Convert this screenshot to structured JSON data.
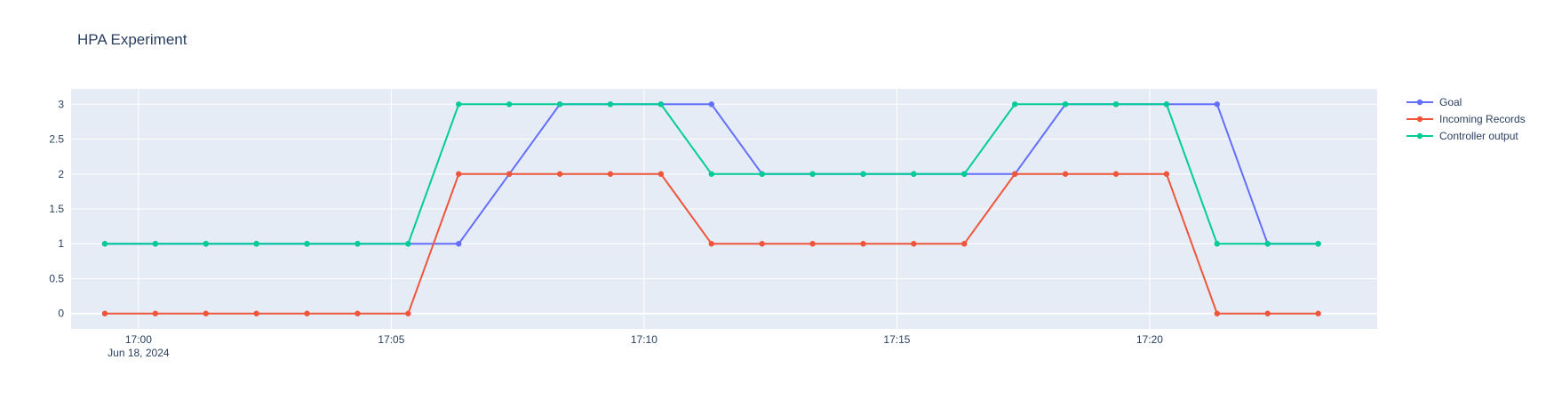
{
  "chart_data": {
    "type": "line",
    "title": "HPA Experiment",
    "xlabel": "",
    "ylabel": "",
    "x_axis": {
      "type": "time",
      "range": [
        "2024-06-18 16:58:40",
        "2024-06-18 17:24:30"
      ],
      "ticks": [
        {
          "t": "2024-06-18 17:00:00",
          "label": "17:00",
          "sublabel": "Jun 18, 2024"
        },
        {
          "t": "2024-06-18 17:05:00",
          "label": "17:05"
        },
        {
          "t": "2024-06-18 17:10:00",
          "label": "17:10"
        },
        {
          "t": "2024-06-18 17:15:00",
          "label": "17:15"
        },
        {
          "t": "2024-06-18 17:20:00",
          "label": "17:20"
        }
      ]
    },
    "y_axis": {
      "range": [
        -0.22,
        3.22
      ],
      "ticks": [
        0,
        0.5,
        1,
        1.5,
        2,
        2.5,
        3
      ],
      "tick_labels": [
        "0",
        "0.5",
        "1",
        "1.5",
        "2",
        "2.5",
        "3"
      ]
    },
    "x": [
      "2024-06-18 16:59:20",
      "2024-06-18 17:00:20",
      "2024-06-18 17:01:20",
      "2024-06-18 17:02:20",
      "2024-06-18 17:03:20",
      "2024-06-18 17:04:20",
      "2024-06-18 17:05:20",
      "2024-06-18 17:06:20",
      "2024-06-18 17:07:20",
      "2024-06-18 17:08:20",
      "2024-06-18 17:09:20",
      "2024-06-18 17:10:20",
      "2024-06-18 17:11:20",
      "2024-06-18 17:12:20",
      "2024-06-18 17:13:20",
      "2024-06-18 17:14:20",
      "2024-06-18 17:15:20",
      "2024-06-18 17:16:20",
      "2024-06-18 17:17:20",
      "2024-06-18 17:18:20",
      "2024-06-18 17:19:20",
      "2024-06-18 17:20:20",
      "2024-06-18 17:21:20",
      "2024-06-18 17:22:20",
      "2024-06-18 17:23:20"
    ],
    "series": [
      {
        "name": "Goal",
        "color": "#636efa",
        "values": [
          1,
          1,
          1,
          1,
          1,
          1,
          1,
          1,
          2,
          3,
          3,
          3,
          3,
          2,
          2,
          2,
          2,
          2,
          2,
          3,
          3,
          3,
          3,
          1,
          1
        ]
      },
      {
        "name": "Incoming Records",
        "color": "#ef553b",
        "values": [
          0,
          0,
          0,
          0,
          0,
          0,
          0,
          2,
          2,
          2,
          2,
          2,
          1,
          1,
          1,
          1,
          1,
          1,
          2,
          2,
          2,
          2,
          0,
          0,
          0
        ]
      },
      {
        "name": "Controller output",
        "color": "#00cc96",
        "values": [
          1,
          1,
          1,
          1,
          1,
          1,
          1,
          3,
          3,
          3,
          3,
          3,
          2,
          2,
          2,
          2,
          2,
          2,
          3,
          3,
          3,
          3,
          1,
          1,
          1
        ]
      }
    ],
    "grid": true,
    "legend": "top-right",
    "plot_bg": "#e5ecf6"
  }
}
